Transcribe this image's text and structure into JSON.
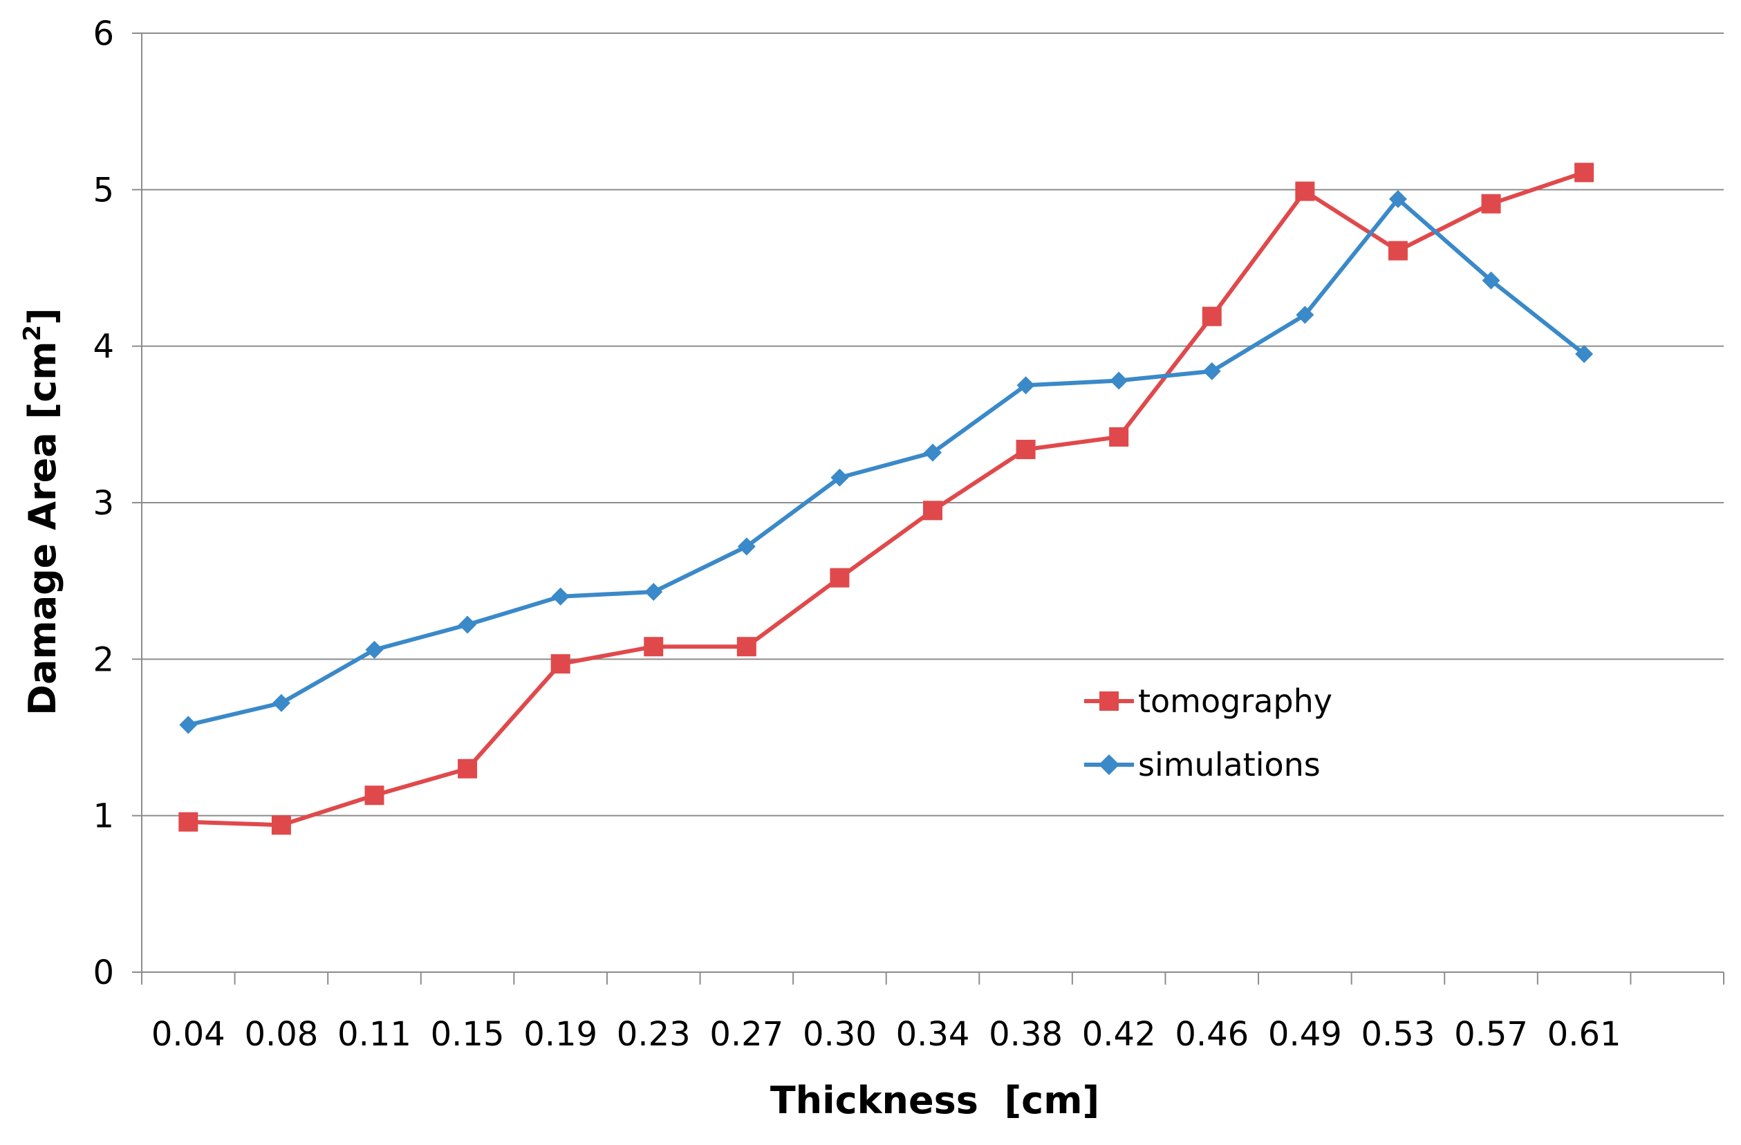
{
  "chart_data": {
    "type": "line",
    "title": "",
    "xlabel": "Thickness  [cm]",
    "ylabel": {
      "main": "Damage Area [cm",
      "superscript": "2",
      "close": "]"
    },
    "categories": [
      "0.04",
      "0.08",
      "0.11",
      "0.15",
      "0.19",
      "0.23",
      "0.27",
      "0.30",
      "0.34",
      "0.38",
      "0.42",
      "0.46",
      "0.49",
      "0.53",
      "0.57",
      "0.61"
    ],
    "ylim": [
      0,
      6
    ],
    "yticks": [
      "0",
      "1",
      "2",
      "3",
      "4",
      "5",
      "6"
    ],
    "grid": true,
    "legend_position": "center-right",
    "series": [
      {
        "name": "tomography",
        "color": "#e0494b",
        "marker": "square",
        "values": [
          0.96,
          0.94,
          1.13,
          1.3,
          1.97,
          2.08,
          2.08,
          2.52,
          2.95,
          3.34,
          3.42,
          4.19,
          4.99,
          4.61,
          4.91,
          5.11
        ]
      },
      {
        "name": "simulations",
        "color": "#3a89c9",
        "marker": "diamond",
        "values": [
          1.58,
          1.72,
          2.06,
          2.22,
          2.4,
          2.43,
          2.72,
          3.16,
          3.32,
          3.75,
          3.78,
          3.84,
          4.2,
          4.94,
          4.42,
          3.95
        ]
      }
    ]
  }
}
